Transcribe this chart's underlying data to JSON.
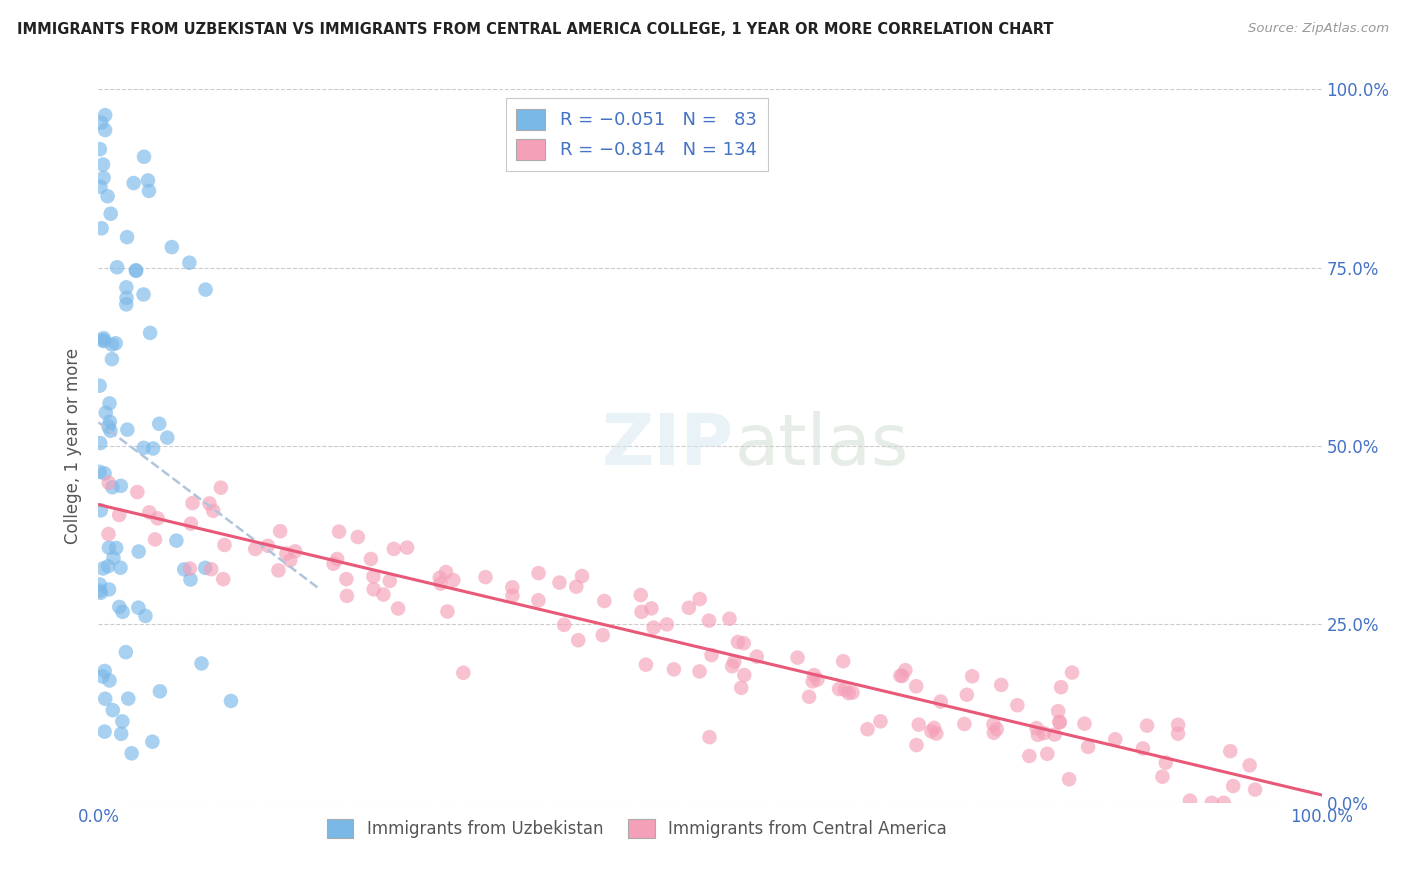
{
  "title": "IMMIGRANTS FROM UZBEKISTAN VS IMMIGRANTS FROM CENTRAL AMERICA COLLEGE, 1 YEAR OR MORE CORRELATION CHART",
  "source": "Source: ZipAtlas.com",
  "ylabel": "College, 1 year or more",
  "color_uzbekistan": "#7ab8e8",
  "color_central_america": "#f4a0b8",
  "trend_color_uzbekistan": "#b0c8e8",
  "trend_color_central_america": "#e85878",
  "background_color": "#ffffff",
  "uzbek_seed": 12,
  "ca_seed": 7
}
